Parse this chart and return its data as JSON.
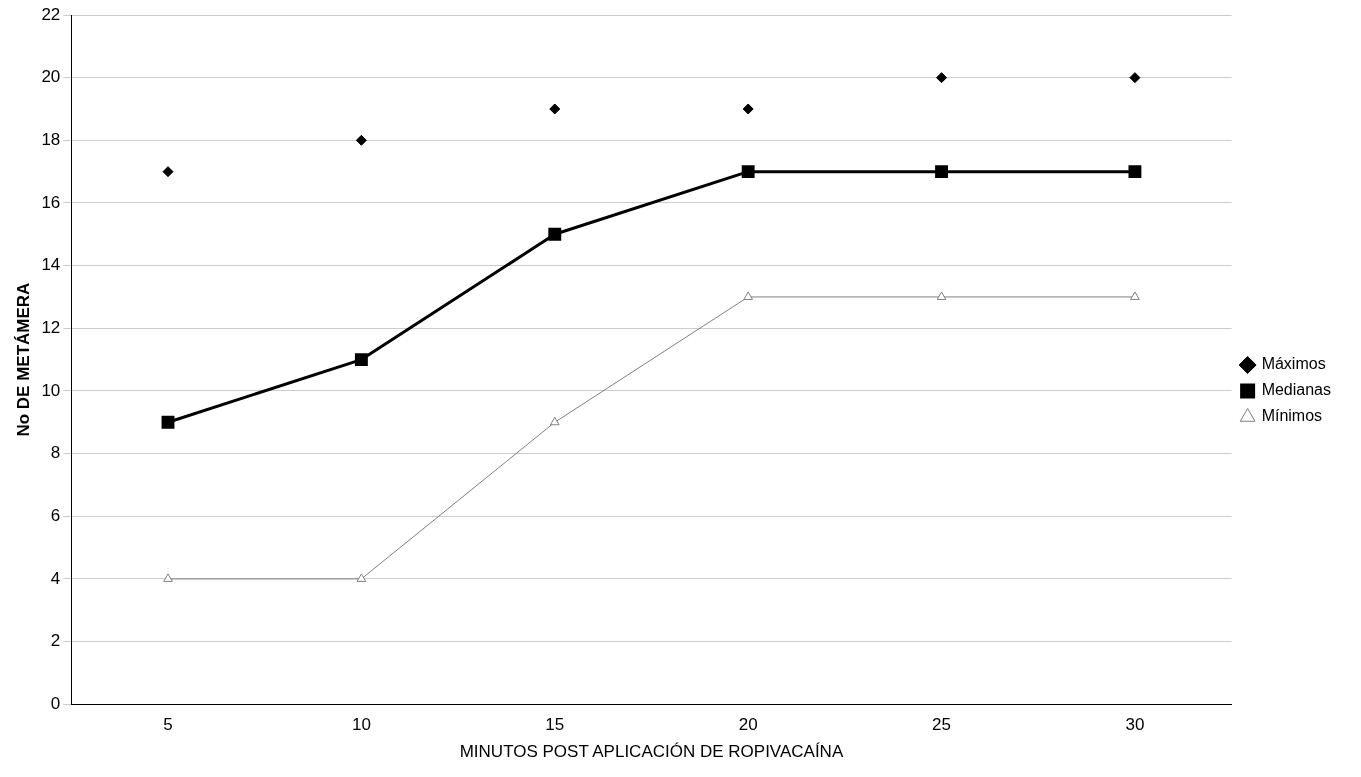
{
  "chart_data": {
    "type": "line",
    "xlabel": "MINUTOS POST APLICACIÓN DE ROPIVACAÍNA",
    "ylabel": "No DE METÁMERA",
    "categories": [
      "5",
      "10",
      "15",
      "20",
      "25",
      "30"
    ],
    "series": [
      {
        "name": "Máximos",
        "type": "scatter",
        "marker": "diamond",
        "color": "#000000",
        "values": [
          17,
          18,
          19,
          19,
          20,
          20
        ]
      },
      {
        "name": "Medianas",
        "marker": "square",
        "color": "#000000",
        "values": [
          9,
          11,
          15,
          17,
          17,
          17
        ]
      },
      {
        "name": "Mínimos",
        "marker": "triangle",
        "color": "#808080",
        "values": [
          4,
          4,
          9,
          13,
          13,
          13
        ]
      }
    ],
    "ylim": [
      0,
      22
    ],
    "yticks": [
      0,
      2,
      4,
      6,
      8,
      10,
      12,
      14,
      16,
      18,
      20,
      22
    ],
    "grid": "y",
    "legend": "right"
  }
}
